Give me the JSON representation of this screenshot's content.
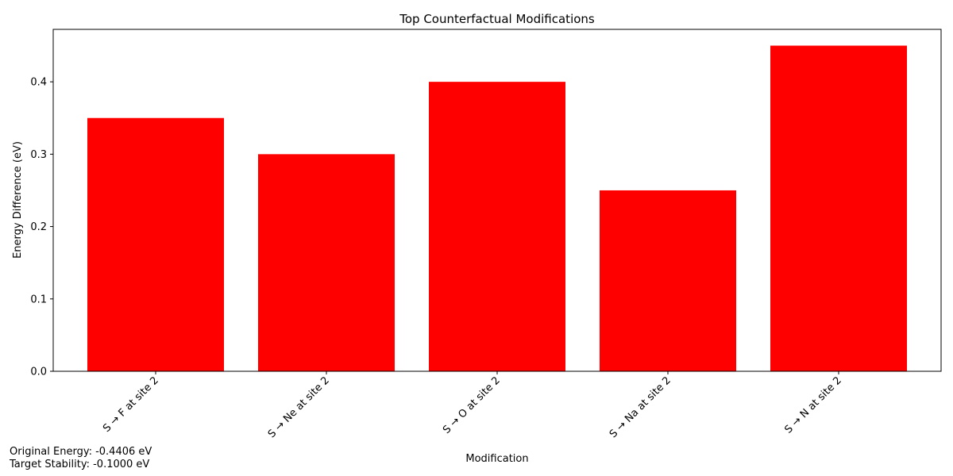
{
  "chart_data": {
    "type": "bar",
    "title": "Top Counterfactual Modifications",
    "xlabel": "Modification",
    "ylabel": "Energy Difference (eV)",
    "categories": [
      "S → F at site 2",
      "S → Ne at site 2",
      "S → O at site 2",
      "S → Na at site 2",
      "S → N at site 2"
    ],
    "values": [
      0.35,
      0.3,
      0.4,
      0.25,
      0.45
    ],
    "ylim": [
      0,
      0.4725
    ],
    "yticks": [
      0.0,
      0.1,
      0.2,
      0.3,
      0.4
    ],
    "ytick_labels": [
      "0.0",
      "0.1",
      "0.2",
      "0.3",
      "0.4"
    ],
    "bar_color": "#ff0000",
    "grid": false,
    "legend": "none"
  },
  "annotations": {
    "original_energy": "Original Energy: -0.4406 eV",
    "target_stability": "Target Stability: -0.1000 eV"
  }
}
